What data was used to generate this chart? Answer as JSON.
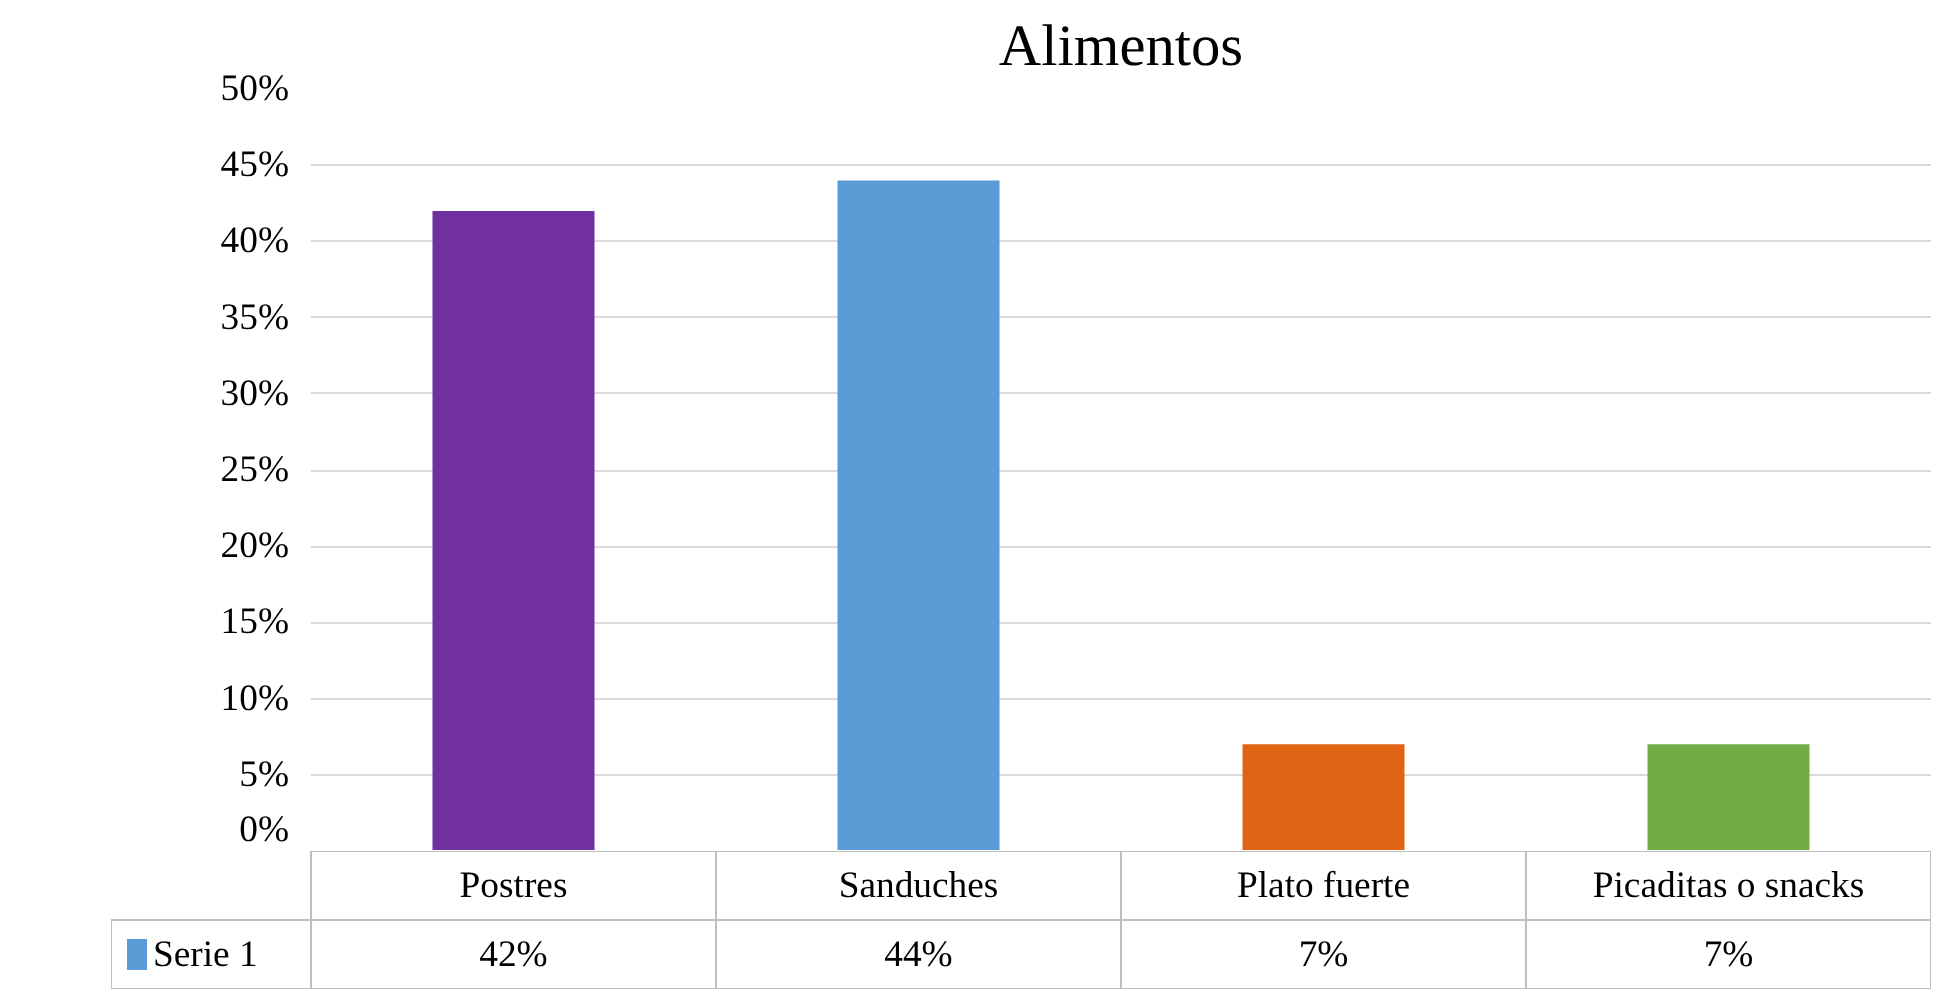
{
  "chart_data": {
    "type": "bar",
    "title": "Alimentos",
    "categories": [
      "Postres",
      "Sanduches",
      "Plato fuerte",
      "Picaditas o snacks"
    ],
    "series": [
      {
        "name": "Serie 1",
        "color": "#5b9bd5",
        "colors": [
          "#7030a0",
          "#5b9bd5",
          "#e06414",
          "#70ad47"
        ],
        "values": [
          42,
          44,
          7,
          7
        ],
        "value_labels": [
          "42%",
          "44%",
          "7%",
          "7%"
        ]
      }
    ],
    "ylim": [
      0,
      50
    ],
    "yticks": [
      {
        "value": 0,
        "label": "0%"
      },
      {
        "value": 5,
        "label": "5%"
      },
      {
        "value": 10,
        "label": "10%"
      },
      {
        "value": 15,
        "label": "15%"
      },
      {
        "value": 20,
        "label": "20%"
      },
      {
        "value": 25,
        "label": "25%"
      },
      {
        "value": 30,
        "label": "30%"
      },
      {
        "value": 35,
        "label": "35%"
      },
      {
        "value": 40,
        "label": "40%"
      },
      {
        "value": 45,
        "label": "45%"
      },
      {
        "value": 50,
        "label": "50%"
      }
    ],
    "grid": "y",
    "legend": "bottom"
  }
}
